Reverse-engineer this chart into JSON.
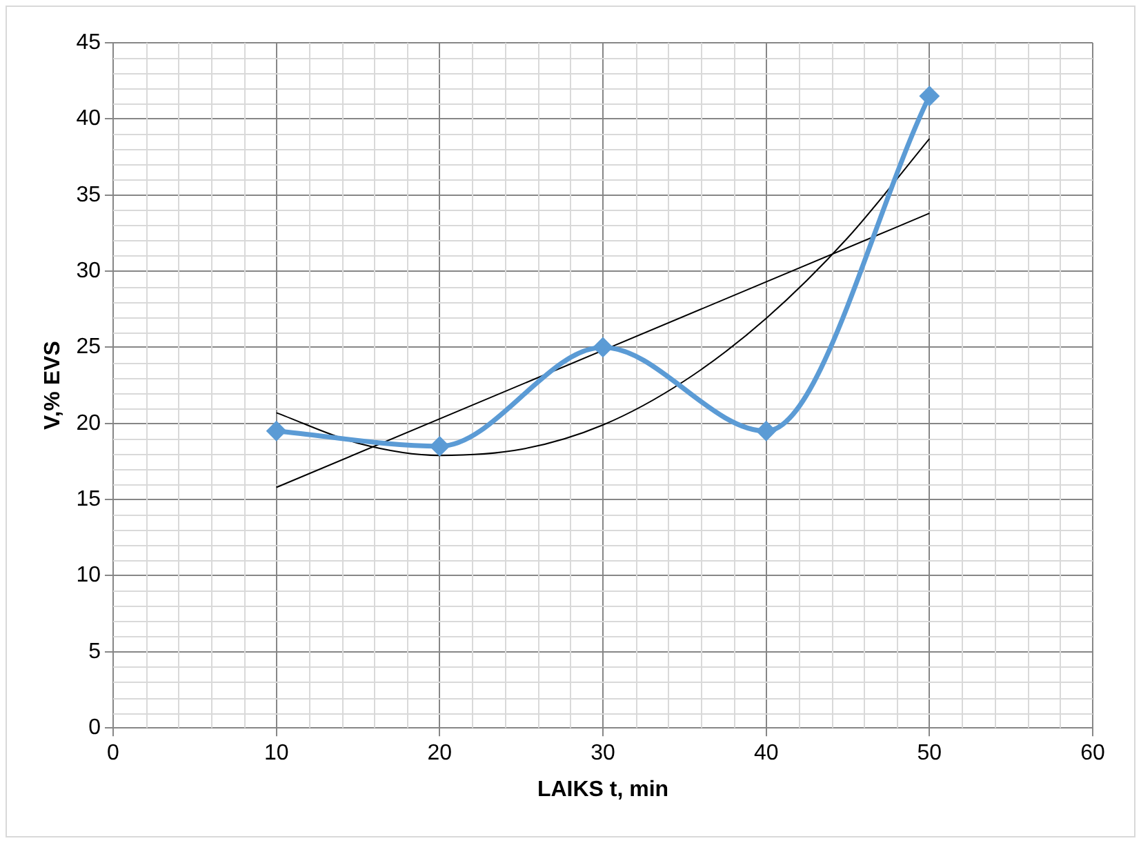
{
  "chart_data": {
    "type": "line",
    "xlabel": "LAIKS t, min",
    "ylabel": "V,% EVS",
    "xlim": [
      0,
      60
    ],
    "xticks": [
      0,
      10,
      20,
      30,
      40,
      50,
      60
    ],
    "ylim": [
      0,
      45
    ],
    "yticks": [
      0,
      5,
      10,
      15,
      20,
      25,
      30,
      35,
      40,
      45
    ],
    "grid": true,
    "legend": false,
    "series": [
      {
        "color": "#5b9bd5",
        "x": [
          10,
          20,
          30,
          40,
          50
        ],
        "values": [
          19.5,
          18.5,
          25,
          19.5,
          41.5
        ],
        "marker": "diamond"
      },
      {
        "color": "#000000",
        "x": [
          10,
          50
        ],
        "values": [
          15.8,
          33.8
        ],
        "marker": "none"
      },
      {
        "color": "#000000",
        "x": [
          10,
          15,
          20,
          25,
          30,
          35,
          40,
          45,
          50
        ],
        "values": [
          20.7,
          18.7,
          17.9,
          18.3,
          19.9,
          22.8,
          26.9,
          32.2,
          38.7
        ],
        "marker": "none"
      }
    ]
  }
}
